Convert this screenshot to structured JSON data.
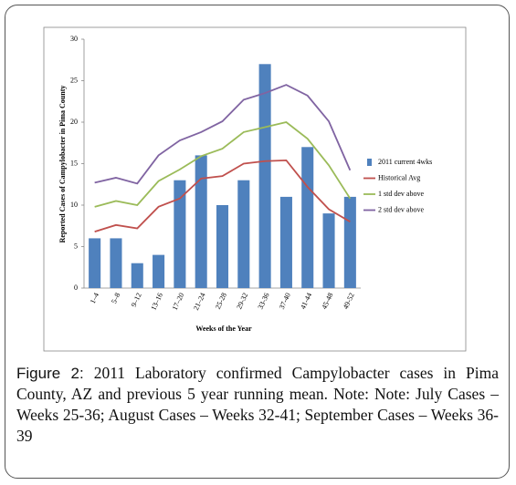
{
  "chart_data": {
    "type": "bar",
    "ylabel": "Reported Cases of Campylobacter in Pima County",
    "xlabel": "Weeks of the Year",
    "categories": [
      "1–4",
      "5–8",
      "9–12",
      "13–16",
      "17–20",
      "21–24",
      "25-28",
      "29-32",
      "33-36",
      "37-40",
      "41-44",
      "45-48",
      "49-52"
    ],
    "series": [
      {
        "name": "2011 current 4wks",
        "type": "bar",
        "color": "#4f81bd",
        "values": [
          6,
          6,
          3,
          4,
          13,
          16,
          10,
          13,
          27,
          11,
          17,
          9,
          11
        ]
      },
      {
        "name": "Historical Avg",
        "type": "line",
        "color": "#c0504d",
        "values": [
          6.8,
          7.6,
          7.2,
          9.8,
          10.8,
          13.2,
          13.5,
          15,
          15.3,
          15.4,
          12.2,
          9.5,
          8.0
        ]
      },
      {
        "name": "1 std dev above",
        "type": "line",
        "color": "#9bbb59",
        "values": [
          9.8,
          10.5,
          10,
          12.9,
          14.3,
          15.9,
          16.8,
          18.8,
          19.4,
          20,
          18,
          14.8,
          10.8
        ]
      },
      {
        "name": "2 std dev above",
        "type": "line",
        "color": "#8064a2",
        "values": [
          12.7,
          13.3,
          12.6,
          16,
          17.8,
          18.8,
          20.1,
          22.7,
          23.5,
          24.5,
          23.2,
          20.1,
          14.2
        ]
      }
    ],
    "ylim": [
      0,
      30
    ],
    "yticks": [
      0,
      5,
      10,
      15,
      20,
      25,
      30
    ],
    "legend": "right"
  },
  "caption": {
    "label": "Figure 2:",
    "text": "2011 Laboratory confirmed Campylobacter cases in Pima County, AZ and previous 5 year running mean. Note: Note: July Cases – Weeks 25-36; August Cases – Weeks 32-41; September Cases – Weeks 36-39"
  }
}
